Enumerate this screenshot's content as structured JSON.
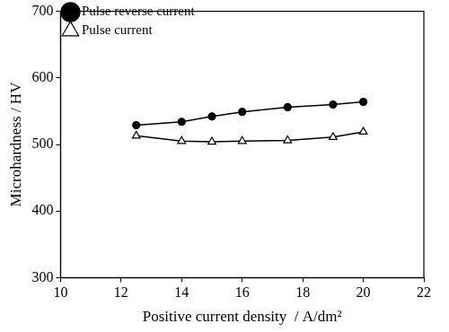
{
  "chart_data": {
    "type": "line",
    "x_label": "Positive current density  / A/dm²",
    "y_label": "Microhardness / HV",
    "x": [
      12.5,
      14,
      15,
      16,
      17.5,
      19,
      20
    ],
    "series": [
      {
        "name": "Pulse reverse current",
        "color": "#000000",
        "marker": "circle",
        "line_style": "solid",
        "values": [
          529,
          534,
          542,
          549,
          556,
          560,
          564
        ]
      },
      {
        "name": "Pulse current",
        "color": "#000000",
        "marker": "triangle-open",
        "line_style": "solid",
        "values": [
          513,
          505,
          504,
          505,
          506,
          511,
          519
        ]
      }
    ],
    "xlim": [
      10,
      22
    ],
    "xticks": [
      10,
      12,
      14,
      16,
      18,
      20,
      22
    ],
    "ylim": [
      300,
      700
    ],
    "yticks": [
      300,
      400,
      500,
      600,
      700
    ],
    "grid": false,
    "legend": "top-left"
  }
}
